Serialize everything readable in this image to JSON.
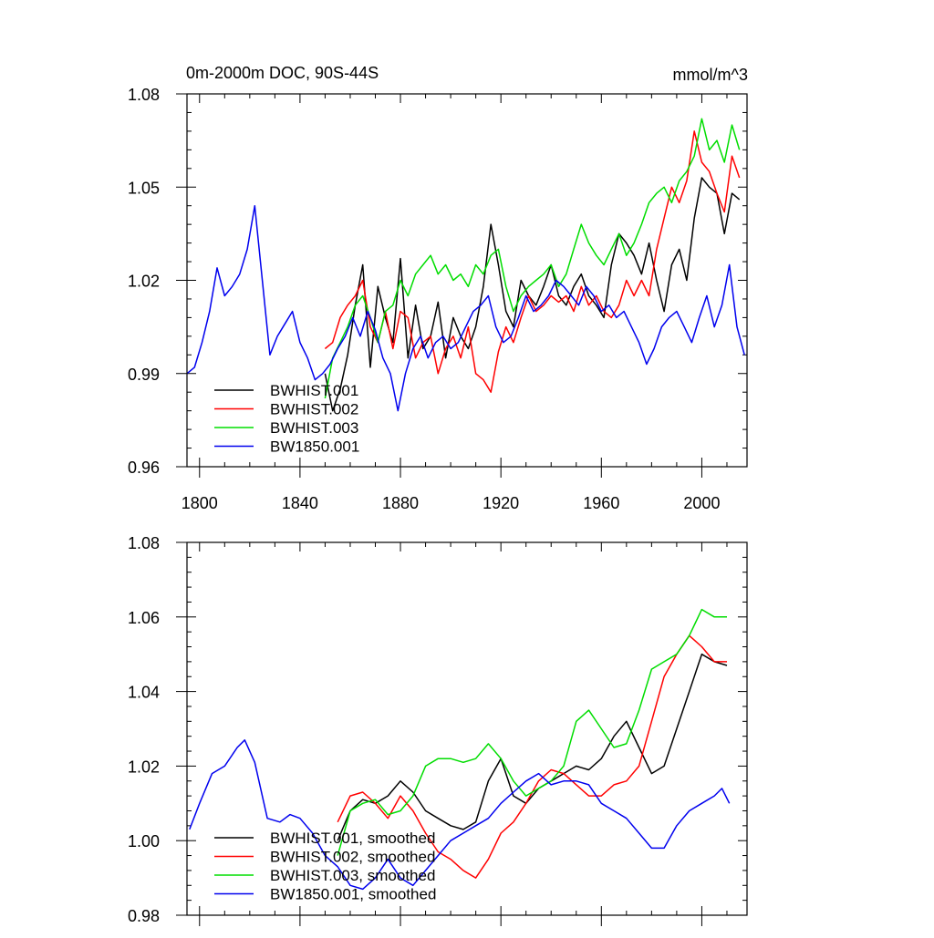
{
  "chart_data": [
    {
      "type": "line",
      "title": "0m-2000m DOC, 90S-44S",
      "units": "mmol/m^3",
      "xlabel": "",
      "ylabel": "",
      "xlim": [
        1795,
        2018
      ],
      "ylim": [
        0.96,
        1.08
      ],
      "x_ticks": [
        1800,
        1840,
        1880,
        1920,
        1960,
        2000
      ],
      "x_tick_labels": [
        "1800",
        "1840",
        "1880",
        "1920",
        "1960",
        "2000"
      ],
      "y_ticks": [
        0.96,
        0.99,
        1.02,
        1.05,
        1.08
      ],
      "y_tick_labels": [
        "0.96",
        "0.99",
        "1.02",
        "1.05",
        "1.08"
      ],
      "legend": "bottom-left",
      "series": [
        {
          "name": "BWHIST.001",
          "color": "#000000",
          "x": [
            1850,
            1853,
            1856,
            1859,
            1862,
            1865,
            1868,
            1871,
            1874,
            1877,
            1880,
            1883,
            1886,
            1889,
            1892,
            1895,
            1898,
            1901,
            1904,
            1907,
            1910,
            1913,
            1916,
            1919,
            1922,
            1925,
            1928,
            1931,
            1934,
            1937,
            1940,
            1943,
            1946,
            1949,
            1952,
            1955,
            1958,
            1961,
            1964,
            1967,
            1970,
            1973,
            1976,
            1979,
            1982,
            1985,
            1988,
            1991,
            1994,
            1997,
            2000,
            2003,
            2006,
            2009,
            2012,
            2015
          ],
          "y": [
            0.99,
            0.978,
            0.985,
            0.996,
            1.012,
            1.025,
            0.992,
            1.018,
            1.008,
            1.0,
            1.027,
            0.995,
            1.012,
            0.998,
            1.002,
            1.013,
            0.995,
            1.008,
            1.002,
            0.998,
            1.005,
            1.018,
            1.038,
            1.025,
            1.01,
            1.005,
            1.02,
            1.015,
            1.012,
            1.018,
            1.025,
            1.015,
            1.012,
            1.018,
            1.022,
            1.015,
            1.012,
            1.008,
            1.025,
            1.035,
            1.032,
            1.028,
            1.022,
            1.032,
            1.02,
            1.01,
            1.025,
            1.03,
            1.02,
            1.04,
            1.053,
            1.05,
            1.048,
            1.035,
            1.048,
            1.046
          ]
        },
        {
          "name": "BWHIST.002",
          "color": "#ff0000",
          "x": [
            1850,
            1853,
            1856,
            1859,
            1862,
            1865,
            1868,
            1871,
            1874,
            1877,
            1880,
            1883,
            1886,
            1889,
            1892,
            1895,
            1898,
            1901,
            1904,
            1907,
            1910,
            1913,
            1916,
            1919,
            1922,
            1925,
            1928,
            1931,
            1934,
            1937,
            1940,
            1943,
            1946,
            1949,
            1952,
            1955,
            1958,
            1961,
            1964,
            1967,
            1970,
            1973,
            1976,
            1979,
            1982,
            1985,
            1988,
            1991,
            1994,
            1997,
            2000,
            2003,
            2006,
            2009,
            2012,
            2015
          ],
          "y": [
            0.998,
            1.0,
            1.008,
            1.012,
            1.015,
            1.02,
            1.005,
            1.0,
            1.01,
            0.998,
            1.01,
            1.008,
            0.995,
            1.0,
            1.002,
            0.99,
            0.998,
            1.002,
            0.995,
            1.005,
            0.99,
            0.988,
            0.984,
            0.997,
            1.005,
            1.0,
            1.008,
            1.015,
            1.01,
            1.012,
            1.015,
            1.013,
            1.015,
            1.01,
            1.018,
            1.012,
            1.015,
            1.01,
            1.008,
            1.012,
            1.02,
            1.015,
            1.02,
            1.015,
            1.03,
            1.04,
            1.05,
            1.045,
            1.052,
            1.068,
            1.058,
            1.055,
            1.048,
            1.042,
            1.06,
            1.053
          ]
        },
        {
          "name": "BWHIST.003",
          "color": "#00dd00",
          "x": [
            1850,
            1853,
            1856,
            1859,
            1862,
            1865,
            1868,
            1871,
            1874,
            1877,
            1880,
            1883,
            1886,
            1889,
            1892,
            1895,
            1898,
            1901,
            1904,
            1907,
            1910,
            1913,
            1916,
            1919,
            1922,
            1925,
            1928,
            1931,
            1934,
            1937,
            1940,
            1943,
            1946,
            1949,
            1952,
            1955,
            1958,
            1961,
            1964,
            1967,
            1970,
            1973,
            1976,
            1979,
            1982,
            1985,
            1988,
            1991,
            1994,
            1997,
            2000,
            2003,
            2006,
            2009,
            2012,
            2015
          ],
          "y": [
            0.982,
            0.995,
            1.0,
            1.005,
            1.012,
            1.015,
            1.008,
            1.0,
            1.01,
            1.012,
            1.02,
            1.015,
            1.022,
            1.025,
            1.028,
            1.022,
            1.025,
            1.02,
            1.022,
            1.018,
            1.025,
            1.022,
            1.028,
            1.03,
            1.018,
            1.01,
            1.015,
            1.018,
            1.02,
            1.022,
            1.025,
            1.018,
            1.022,
            1.03,
            1.038,
            1.032,
            1.028,
            1.025,
            1.03,
            1.035,
            1.028,
            1.032,
            1.038,
            1.045,
            1.048,
            1.05,
            1.045,
            1.052,
            1.055,
            1.06,
            1.072,
            1.062,
            1.065,
            1.058,
            1.07,
            1.062
          ]
        },
        {
          "name": "BW1850.001",
          "color": "#0000ee",
          "x": [
            1795,
            1798,
            1801,
            1804,
            1807,
            1810,
            1813,
            1816,
            1819,
            1822,
            1825,
            1828,
            1831,
            1834,
            1837,
            1840,
            1843,
            1846,
            1849,
            1852,
            1855,
            1858,
            1861,
            1864,
            1867,
            1870,
            1873,
            1876,
            1879,
            1882,
            1885,
            1888,
            1891,
            1894,
            1897,
            1900,
            1903,
            1906,
            1909,
            1912,
            1915,
            1918,
            1921,
            1924,
            1927,
            1930,
            1933,
            1936,
            1939,
            1942,
            1945,
            1948,
            1951,
            1954,
            1957,
            1960,
            1963,
            1966,
            1969,
            1972,
            1975,
            1978,
            1981,
            1984,
            1987,
            1990,
            1993,
            1996,
            1999,
            2002,
            2005,
            2008,
            2011,
            2014,
            2017
          ],
          "y": [
            0.99,
            0.992,
            1.0,
            1.01,
            1.024,
            1.015,
            1.018,
            1.022,
            1.03,
            1.044,
            1.02,
            0.996,
            1.002,
            1.006,
            1.01,
            1.0,
            0.995,
            0.988,
            0.99,
            0.993,
            0.998,
            1.002,
            1.008,
            1.002,
            1.01,
            1.004,
            0.995,
            0.99,
            0.978,
            0.99,
            0.998,
            1.002,
            0.995,
            1.0,
            1.002,
            0.998,
            1.0,
            1.005,
            1.01,
            1.012,
            1.015,
            1.005,
            1.0,
            1.002,
            1.008,
            1.015,
            1.01,
            1.012,
            1.015,
            1.02,
            1.018,
            1.015,
            1.012,
            1.018,
            1.015,
            1.01,
            1.012,
            1.008,
            1.01,
            1.005,
            1.0,
            0.993,
            0.998,
            1.005,
            1.008,
            1.01,
            1.005,
            1.0,
            1.008,
            1.015,
            1.005,
            1.012,
            1.025,
            1.005,
            0.996
          ]
        }
      ]
    },
    {
      "type": "line",
      "title": "",
      "xlabel": "",
      "ylabel": "",
      "xlim": [
        1795,
        2018
      ],
      "ylim": [
        0.98,
        1.08
      ],
      "y_ticks": [
        0.98,
        1.0,
        1.02,
        1.04,
        1.06,
        1.08
      ],
      "y_tick_labels": [
        "0.98",
        "1.00",
        "1.02",
        "1.04",
        "1.06",
        "1.08"
      ],
      "legend": "bottom-left",
      "series": [
        {
          "name": "BWHIST.001, smoothed",
          "color": "#000000",
          "x": [
            1855,
            1860,
            1865,
            1870,
            1875,
            1880,
            1885,
            1890,
            1895,
            1900,
            1905,
            1910,
            1915,
            1920,
            1925,
            1930,
            1935,
            1940,
            1945,
            1950,
            1955,
            1960,
            1965,
            1970,
            1975,
            1980,
            1985,
            1990,
            1995,
            2000,
            2005,
            2010
          ],
          "y": [
            1.0,
            1.008,
            1.011,
            1.01,
            1.012,
            1.016,
            1.013,
            1.008,
            1.006,
            1.004,
            1.003,
            1.005,
            1.016,
            1.022,
            1.012,
            1.01,
            1.014,
            1.016,
            1.018,
            1.02,
            1.019,
            1.022,
            1.028,
            1.032,
            1.025,
            1.018,
            1.02,
            1.03,
            1.04,
            1.05,
            1.048,
            1.047
          ]
        },
        {
          "name": "BWHIST.002, smoothed",
          "color": "#ff0000",
          "x": [
            1855,
            1860,
            1865,
            1870,
            1875,
            1880,
            1885,
            1890,
            1895,
            1900,
            1905,
            1910,
            1915,
            1920,
            1925,
            1930,
            1935,
            1940,
            1945,
            1950,
            1955,
            1960,
            1965,
            1970,
            1975,
            1980,
            1985,
            1990,
            1995,
            2000,
            2005,
            2010
          ],
          "y": [
            1.005,
            1.012,
            1.013,
            1.01,
            1.006,
            1.012,
            1.008,
            1.002,
            0.997,
            0.995,
            0.992,
            0.99,
            0.995,
            1.002,
            1.005,
            1.01,
            1.016,
            1.019,
            1.018,
            1.015,
            1.012,
            1.012,
            1.015,
            1.016,
            1.02,
            1.032,
            1.044,
            1.05,
            1.055,
            1.052,
            1.048,
            1.048
          ]
        },
        {
          "name": "BWHIST.003, smoothed",
          "color": "#00dd00",
          "x": [
            1855,
            1860,
            1865,
            1870,
            1875,
            1880,
            1885,
            1890,
            1895,
            1900,
            1905,
            1910,
            1915,
            1920,
            1925,
            1930,
            1935,
            1940,
            1945,
            1950,
            1955,
            1960,
            1965,
            1970,
            1975,
            1980,
            1985,
            1990,
            1995,
            2000,
            2005,
            2010
          ],
          "y": [
            0.996,
            1.008,
            1.01,
            1.011,
            1.007,
            1.008,
            1.012,
            1.02,
            1.022,
            1.022,
            1.021,
            1.022,
            1.026,
            1.022,
            1.016,
            1.012,
            1.014,
            1.016,
            1.02,
            1.032,
            1.035,
            1.03,
            1.025,
            1.026,
            1.035,
            1.046,
            1.048,
            1.05,
            1.055,
            1.062,
            1.06,
            1.06
          ]
        },
        {
          "name": "BW1850.001, smoothed",
          "color": "#0000ee",
          "x": [
            1796,
            1800,
            1805,
            1810,
            1815,
            1818,
            1822,
            1827,
            1832,
            1836,
            1840,
            1845,
            1850,
            1855,
            1860,
            1865,
            1870,
            1875,
            1880,
            1885,
            1890,
            1895,
            1900,
            1905,
            1910,
            1915,
            1920,
            1925,
            1930,
            1935,
            1940,
            1945,
            1950,
            1955,
            1960,
            1965,
            1970,
            1975,
            1980,
            1985,
            1990,
            1995,
            2000,
            2005,
            2008,
            2011
          ],
          "y": [
            1.003,
            1.01,
            1.018,
            1.02,
            1.025,
            1.027,
            1.021,
            1.006,
            1.005,
            1.007,
            1.006,
            1.002,
            0.996,
            0.993,
            0.988,
            0.987,
            0.99,
            0.995,
            0.99,
            0.988,
            0.992,
            0.996,
            1.0,
            1.002,
            1.004,
            1.006,
            1.01,
            1.013,
            1.016,
            1.018,
            1.015,
            1.016,
            1.016,
            1.015,
            1.01,
            1.008,
            1.006,
            1.002,
            0.998,
            0.998,
            1.004,
            1.008,
            1.01,
            1.012,
            1.014,
            1.01
          ]
        }
      ]
    }
  ]
}
